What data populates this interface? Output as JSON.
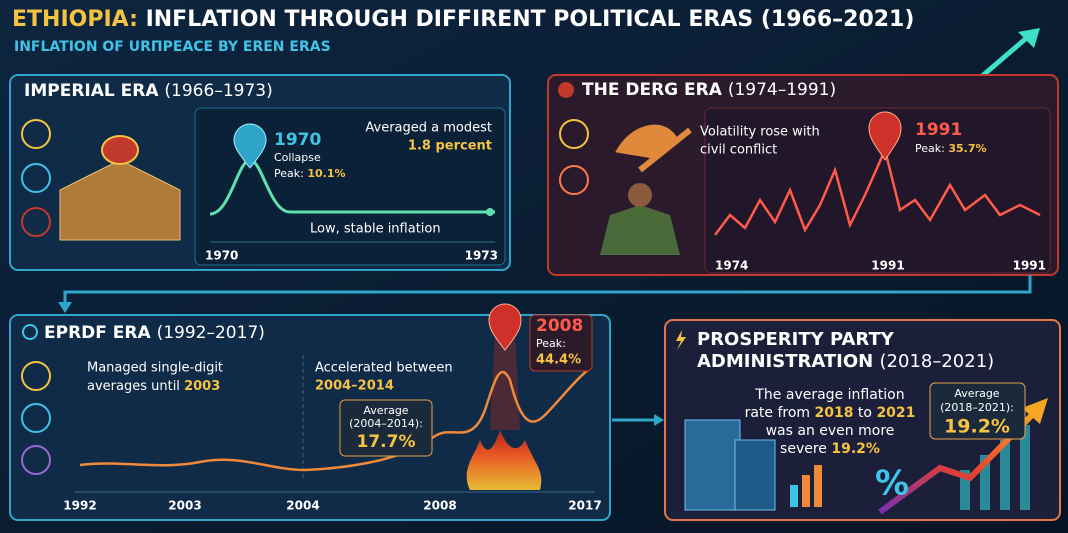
{
  "header": {
    "title_lead": "ETHIOPIA:",
    "title": "INFLATION THROUGH DIFFIRENT POLITICAL ERAS (1966–2021)",
    "subtitle": "INFLATION OF URΠPEACE BY EREN ERAS"
  },
  "imperial": {
    "name": "IMPERIAL ERA",
    "years": "(1966–1973)",
    "peak_year": "1970",
    "peak_note": "Collapse",
    "peak_label": "Peak:",
    "peak_value": "10.1%",
    "average_note": "Averaged a modest",
    "average_value": "1.8 percent",
    "line_note": "Low, stable inflation",
    "axis_labels": [
      "1970",
      "1973"
    ]
  },
  "derg": {
    "name": "THE DERG ERA",
    "years": "(1974–1991)",
    "note": [
      "Volatility rose with",
      "civil conflict"
    ],
    "peak_year": "1991",
    "peak_label": "Peak:",
    "peak_value": "35.7%",
    "axis_labels": [
      "1974",
      "1991",
      "1991"
    ]
  },
  "eprdf": {
    "name": "EPRDF ERA",
    "years": "(1992–2017)",
    "early_note_line1": "Managed single-digit",
    "early_note_line2": "averages until",
    "early_note_year": "2003",
    "late_note": "Accelerated between",
    "late_note_years": "2004–2014",
    "average_label": "Average",
    "average_period": "(2004–2014):",
    "average_value": "17.7%",
    "peak_year": "2008",
    "peak_label": "Peak:",
    "peak_value": "44.4%",
    "axis_labels": [
      "1992",
      "2003",
      "2004",
      "2008",
      "2017"
    ]
  },
  "prosperity": {
    "name_line1": "PROSPERITY PARTY",
    "name_line2": "ADMINISTRATION",
    "years": "(2018–2021)",
    "note_line1": "The average inflation",
    "note_line2_a": "rate from",
    "note_line2_year1": "2018",
    "note_line2_b": "to",
    "note_line2_year2": "2021",
    "note_line3": "was an even more",
    "note_line4": "severe",
    "note_value": "19.2%",
    "average_label": "Average",
    "average_period": "(2018–2021):",
    "average_value": "19.2%",
    "symbol": "%"
  }
}
